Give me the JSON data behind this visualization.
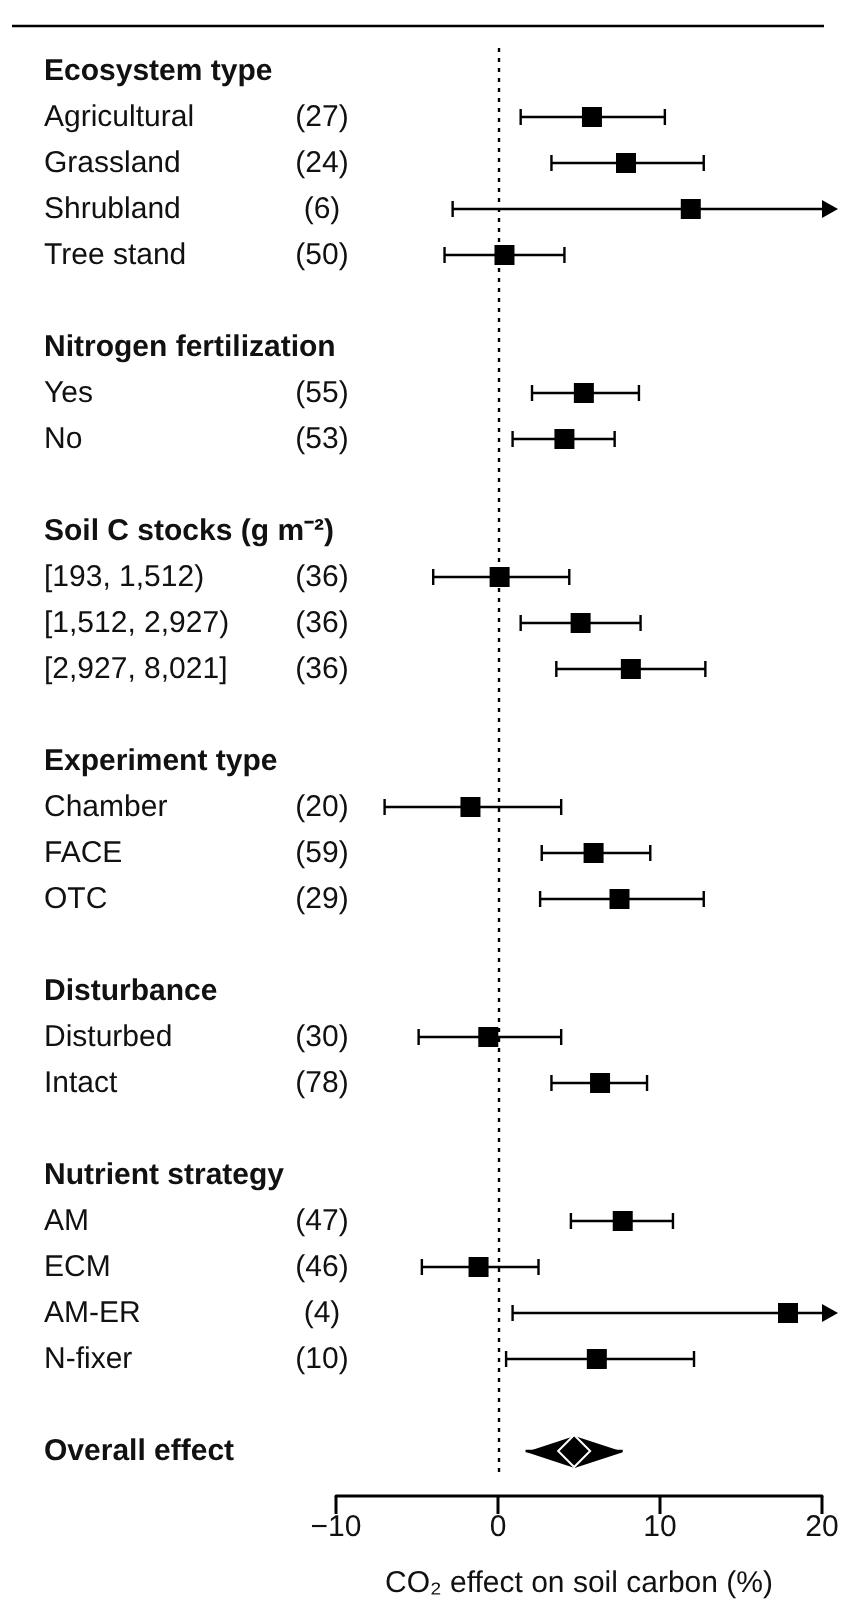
{
  "chart_data": {
    "type": "scatter",
    "orientation": "horizontal",
    "categories": [
      "Ecosystem type",
      "Agricultural (27)",
      "Grassland (24)",
      "Shrubland (6)",
      "Tree stand (50)",
      null,
      "Nitrogen fertilization",
      "Yes (55)",
      "No (53)",
      null,
      "Soil C stocks (g m⁻²)",
      "[193, 1,512) (36)",
      "[1,512, 2,927) (36)",
      "[2,927, 8,021] (36)",
      null,
      "Experiment type",
      "Chamber (20)",
      "FACE (59)",
      "OTC (29)",
      null,
      "Disturbance",
      "Disturbed (30)",
      "Intact (78)",
      null,
      "Nutrient strategy",
      "AM (47)",
      "ECM (46)",
      "AM-ER (4)",
      "N-fixer (10)",
      null,
      "Overall effect"
    ],
    "series": [
      {
        "color": "#000000",
        "marker": "square",
        "values": [
          null,
          5.8,
          7.9,
          11.9,
          0.4,
          null,
          null,
          5.3,
          4.1,
          null,
          null,
          0.1,
          5.1,
          8.2,
          null,
          null,
          -1.7,
          5.9,
          7.5,
          null,
          null,
          -0.6,
          6.3,
          null,
          null,
          7.7,
          -1.2,
          17.9,
          6.1,
          null,
          null
        ],
        "errors": [
          null,
          [
            1.4,
            10.3
          ],
          [
            3.3,
            12.7
          ],
          [
            -2.8,
            20
          ],
          [
            -3.3,
            4.1
          ],
          null,
          null,
          [
            2.1,
            8.7
          ],
          [
            0.9,
            7.2
          ],
          null,
          null,
          [
            -4.0,
            4.4
          ],
          [
            1.4,
            8.8
          ],
          [
            3.6,
            12.8
          ],
          null,
          null,
          [
            -7.0,
            3.9
          ],
          [
            2.7,
            9.4
          ],
          [
            2.6,
            12.7
          ],
          null,
          null,
          [
            -4.9,
            3.9
          ],
          [
            3.3,
            9.2
          ],
          null,
          null,
          [
            4.5,
            10.8
          ],
          [
            -4.7,
            2.5
          ],
          [
            0.9,
            20
          ],
          [
            0.5,
            12.1
          ],
          null,
          null
        ]
      },
      {
        "color": "#000000",
        "marker": "diamond",
        "values": [
          null,
          null,
          null,
          null,
          null,
          null,
          null,
          null,
          null,
          null,
          null,
          null,
          null,
          null,
          null,
          null,
          null,
          null,
          null,
          null,
          null,
          null,
          null,
          null,
          null,
          null,
          null,
          null,
          null,
          null,
          4.7
        ],
        "errors": [
          null,
          null,
          null,
          null,
          null,
          null,
          null,
          null,
          null,
          null,
          null,
          null,
          null,
          null,
          null,
          null,
          null,
          null,
          null,
          null,
          null,
          null,
          null,
          null,
          null,
          null,
          null,
          null,
          null,
          null,
          [
            1.7,
            7.7
          ]
        ]
      }
    ],
    "xlabel": "CO₂ effect on soil carbon (%)",
    "xlim": [
      -10,
      20
    ],
    "xticks": [
      {
        "value": -10,
        "label": "−10"
      },
      0,
      10,
      20
    ],
    "ref_lines": [
      {
        "axis": "x",
        "value": 0,
        "color": "#000000",
        "line_style": "dotted"
      }
    ],
    "grid": false
  }
}
